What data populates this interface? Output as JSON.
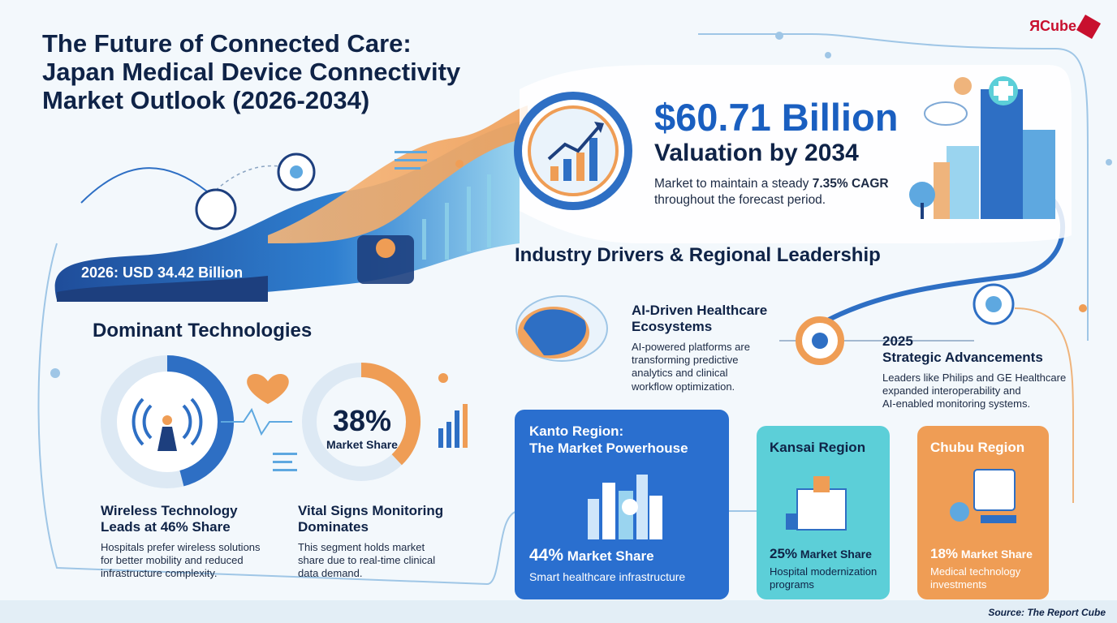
{
  "title": {
    "line1": "The Future of Connected Care:",
    "line2": "Japan Medical Device Connectivity",
    "line3": "Market Outlook (2026-2034)"
  },
  "logo": {
    "text": "ЯCube"
  },
  "valuation": {
    "value": "$60.71 Billion",
    "subtitle": "Valuation by 2034",
    "desc_prefix": "Market to maintain a steady ",
    "desc_cagr": "7.35% CAGR",
    "desc_suffix": "throughout the forecast period."
  },
  "baseline": {
    "label": "2026: USD 34.42 Billion"
  },
  "technologies": {
    "heading": "Dominant Technologies",
    "wireless": {
      "title_line1": "Wireless Technology",
      "title_line2": "Leads at 46% Share",
      "desc_line1": "Hospitals prefer wireless solutions",
      "desc_line2": "for better mobility and reduced",
      "desc_line3": "infrastructure complexity.",
      "share": 0.46
    },
    "vitals": {
      "donut_pct": "38%",
      "donut_label": "Market Share",
      "title_line1": "Vital Signs Monitoring",
      "title_line2": "Dominates",
      "desc_line1": "This segment holds market",
      "desc_line2": "share due to real-time clinical",
      "desc_line3": "data demand.",
      "share": 0.38
    }
  },
  "drivers": {
    "heading": "Industry Drivers & Regional Leadership",
    "ai": {
      "title_line1": "AI-Driven Healthcare",
      "title_line2": "Ecosystems",
      "desc_line1": "AI-powered platforms are",
      "desc_line2": "transforming predictive",
      "desc_line3": "analytics and clinical",
      "desc_line4": "workflow optimization."
    },
    "strategic": {
      "title_line1": "2025",
      "title_line2": "Strategic Advancements",
      "desc_line1": "Leaders like Philips and GE Healthcare",
      "desc_line2": "expanded interoperability and",
      "desc_line3": "AI-enabled monitoring systems."
    }
  },
  "regions": {
    "kanto": {
      "title_line1": "Kanto Region:",
      "title_line2": "The Market Powerhouse",
      "pct": "44%",
      "share_label": "Market Share",
      "desc": "Smart healthcare infrastructure",
      "color": "#2a6fcf"
    },
    "kansai": {
      "title": "Kansai Region",
      "pct": "25%",
      "share_label": "Market Share",
      "desc_line1": "Hospital modernization",
      "desc_line2": "programs",
      "color": "#5ccfd8"
    },
    "chubu": {
      "title": "Chubu Region",
      "pct": "18%",
      "share_label": "Market Share",
      "desc_line1": "Medical technology",
      "desc_line2": "investments",
      "color": "#ef9d55"
    }
  },
  "source": {
    "text": "Source: The Report Cube"
  },
  "colors": {
    "navy": "#0f2347",
    "blue": "#1a5fc0",
    "orange": "#ef9d55",
    "teal": "#5ccfd8"
  }
}
